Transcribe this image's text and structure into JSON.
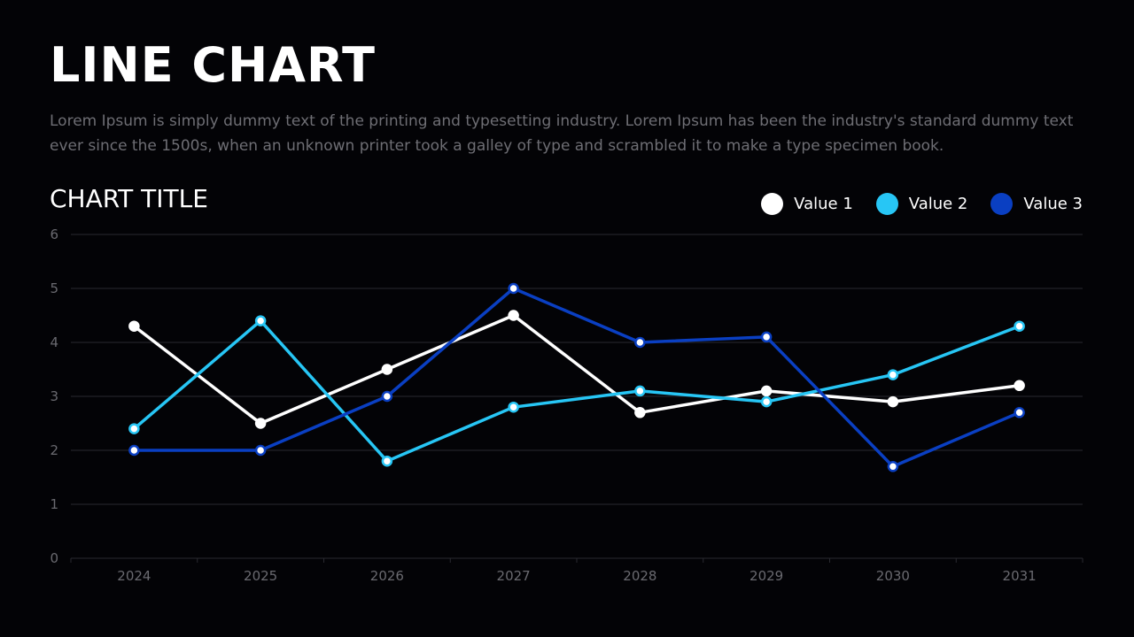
{
  "slide": {
    "title": "LINE CHART",
    "description": "Lorem Ipsum is simply dummy text of the printing and typesetting industry. Lorem Ipsum has been the industry's standard dummy text ever since the 1500s, when an unknown printer took a galley of type and scrambled it to make a type specimen book."
  },
  "colors": {
    "background": "#030306",
    "grid": "#2a2a30",
    "value1": "#ffffff",
    "value2": "#27c6f5",
    "value3": "#0a3fc2"
  },
  "legend": [
    {
      "label": "Value 1",
      "color": "#ffffff"
    },
    {
      "label": "Value 2",
      "color": "#27c6f5"
    },
    {
      "label": "Value 3",
      "color": "#0a3fc2"
    }
  ],
  "chart_data": {
    "type": "line",
    "title": "CHART TITLE",
    "xlabel": "",
    "ylabel": "",
    "x": [
      "2024",
      "2025",
      "2026",
      "2027",
      "2028",
      "2029",
      "2030",
      "2031"
    ],
    "ylim": [
      0,
      6
    ],
    "yticks": [
      0,
      1,
      2,
      3,
      4,
      5,
      6
    ],
    "grid": true,
    "legend_position": "top-right",
    "series": [
      {
        "name": "Value 1",
        "color": "#ffffff",
        "values": [
          4.3,
          2.5,
          3.5,
          4.5,
          2.7,
          3.1,
          2.9,
          3.2
        ]
      },
      {
        "name": "Value 2",
        "color": "#27c6f5",
        "values": [
          2.4,
          4.4,
          1.8,
          2.8,
          3.1,
          2.9,
          3.4,
          4.3
        ]
      },
      {
        "name": "Value 3",
        "color": "#0a3fc2",
        "values": [
          2.0,
          2.0,
          3.0,
          5.0,
          4.0,
          4.1,
          1.7,
          2.7
        ]
      }
    ]
  }
}
